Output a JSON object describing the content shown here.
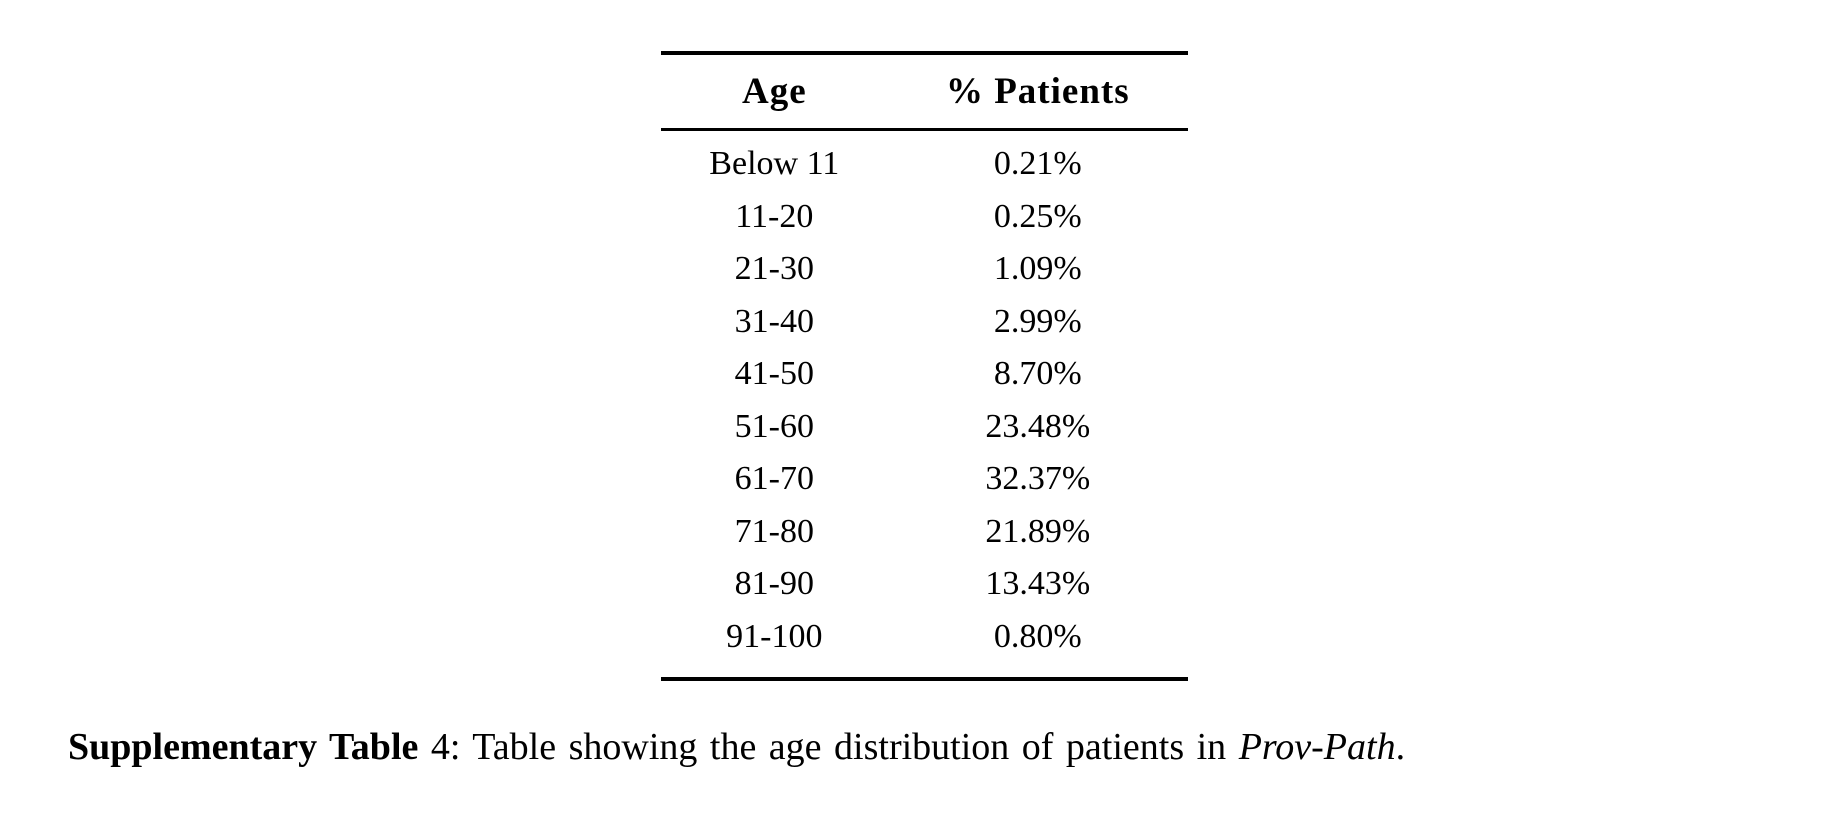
{
  "page": {
    "background": "#ffffff",
    "text_color": "#000000"
  },
  "table": {
    "header": {
      "age": "Age",
      "pct": "% Patients"
    },
    "rows": [
      {
        "age": "Below 11",
        "pct": "0.21%"
      },
      {
        "age": "11-20",
        "pct": "0.25%"
      },
      {
        "age": "21-30",
        "pct": "1.09%"
      },
      {
        "age": "31-40",
        "pct": "2.99%"
      },
      {
        "age": "41-50",
        "pct": "8.70%"
      },
      {
        "age": "51-60",
        "pct": "23.48%"
      },
      {
        "age": "61-70",
        "pct": "32.37%"
      },
      {
        "age": "71-80",
        "pct": "21.89%"
      },
      {
        "age": "81-90",
        "pct": "13.43%"
      },
      {
        "age": "91-100",
        "pct": "0.80%"
      }
    ]
  },
  "caption": {
    "label": "Supplementary Table",
    "number": " 4: ",
    "body": "Table showing the age distribution of patients in ",
    "emphasis": "Prov-Path",
    "suffix": "."
  }
}
